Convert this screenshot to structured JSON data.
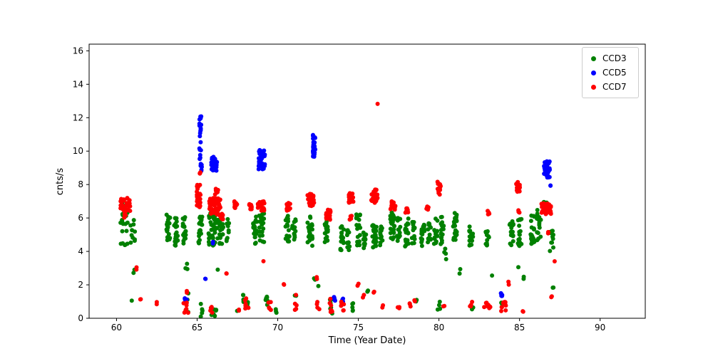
{
  "chart_data": {
    "type": "scatter",
    "title": "",
    "xlabel": "Time (Year Date)",
    "ylabel": "cnts/s",
    "xlim": [
      58.3,
      92.8
    ],
    "ylim": [
      0,
      16.4
    ],
    "xticks": [
      60,
      65,
      70,
      75,
      80,
      85,
      90
    ],
    "yticks": [
      0,
      2,
      4,
      6,
      8,
      10,
      12,
      14,
      16
    ],
    "grid": false,
    "legend_position": "upper right",
    "marker_radius": 3,
    "series": [
      {
        "name": "CCD3",
        "color": "#008000",
        "clusters": [
          [
            60.5,
            0.25,
            4.3,
            7.3,
            22
          ],
          [
            61.0,
            0.15,
            4.5,
            6.1,
            10
          ],
          [
            61.1,
            0.05,
            2.0,
            3.0,
            2
          ],
          [
            60.9,
            0.05,
            1.0,
            1.2,
            1
          ],
          [
            63.2,
            0.12,
            4.5,
            6.2,
            22
          ],
          [
            63.7,
            0.12,
            4.3,
            6.0,
            18
          ],
          [
            64.2,
            0.12,
            4.4,
            6.2,
            18
          ],
          [
            64.3,
            0.1,
            2.5,
            3.4,
            3
          ],
          [
            64.4,
            0.1,
            0.3,
            1.5,
            4
          ],
          [
            65.2,
            0.12,
            4.4,
            6.3,
            22
          ],
          [
            65.3,
            0.1,
            0.1,
            0.9,
            5
          ],
          [
            66.0,
            0.3,
            4.2,
            6.4,
            48
          ],
          [
            66.5,
            0.12,
            4.4,
            6.2,
            20
          ],
          [
            66.9,
            0.1,
            4.5,
            6.0,
            10
          ],
          [
            66.0,
            0.2,
            0.1,
            0.8,
            6
          ],
          [
            66.3,
            0.05,
            2.9,
            3.1,
            1
          ],
          [
            67.5,
            0.05,
            0.3,
            0.5,
            1
          ],
          [
            68.0,
            0.2,
            0.6,
            1.4,
            12
          ],
          [
            68.6,
            0.12,
            4.4,
            6.2,
            22
          ],
          [
            69.0,
            0.15,
            4.5,
            6.3,
            22
          ],
          [
            69.3,
            0.1,
            0.8,
            1.3,
            6
          ],
          [
            69.9,
            0.08,
            0.2,
            0.6,
            3
          ],
          [
            70.6,
            0.12,
            4.6,
            6.3,
            18
          ],
          [
            71.0,
            0.12,
            4.4,
            6.0,
            14
          ],
          [
            71.1,
            0.05,
            1.3,
            1.5,
            2
          ],
          [
            72.0,
            0.15,
            4.3,
            6.3,
            22
          ],
          [
            72.3,
            0.05,
            2.2,
            2.6,
            2
          ],
          [
            72.5,
            0.05,
            1.9,
            2.1,
            1
          ],
          [
            73.0,
            0.12,
            4.5,
            6.2,
            18
          ],
          [
            73.3,
            0.1,
            0.2,
            1.2,
            6
          ],
          [
            74.0,
            0.12,
            3.9,
            5.5,
            18
          ],
          [
            74.4,
            0.1,
            4.0,
            5.3,
            12
          ],
          [
            74.6,
            0.08,
            0.3,
            1.0,
            5
          ],
          [
            75.0,
            0.12,
            4.3,
            6.3,
            22
          ],
          [
            75.4,
            0.1,
            3.9,
            5.2,
            12
          ],
          [
            75.6,
            0.05,
            1.5,
            1.7,
            2
          ],
          [
            76.0,
            0.15,
            4.2,
            5.6,
            22
          ],
          [
            76.4,
            0.1,
            4.3,
            5.5,
            12
          ],
          [
            77.1,
            0.15,
            4.7,
            6.4,
            22
          ],
          [
            77.5,
            0.1,
            4.5,
            6.0,
            12
          ],
          [
            78.0,
            0.15,
            4.3,
            6.0,
            22
          ],
          [
            78.4,
            0.1,
            4.4,
            5.8,
            12
          ],
          [
            78.6,
            0.05,
            0.9,
            1.1,
            2
          ],
          [
            79.0,
            0.12,
            4.3,
            5.6,
            20
          ],
          [
            79.4,
            0.1,
            4.5,
            5.8,
            12
          ],
          [
            79.8,
            0.12,
            4.4,
            6.0,
            16
          ],
          [
            80.2,
            0.12,
            4.4,
            6.2,
            18
          ],
          [
            80.4,
            0.08,
            3.5,
            4.3,
            4
          ],
          [
            80.0,
            0.1,
            0.3,
            1.5,
            4
          ],
          [
            81.0,
            0.12,
            4.6,
            6.3,
            22
          ],
          [
            81.3,
            0.05,
            2.6,
            3.0,
            2
          ],
          [
            82.0,
            0.12,
            4.3,
            5.5,
            16
          ],
          [
            82.1,
            0.05,
            0.5,
            0.7,
            2
          ],
          [
            83.0,
            0.12,
            4.3,
            5.2,
            12
          ],
          [
            83.3,
            0.05,
            2.5,
            2.7,
            1
          ],
          [
            83.9,
            0.05,
            0.8,
            1.0,
            2
          ],
          [
            84.5,
            0.12,
            4.3,
            6.0,
            16
          ],
          [
            85.0,
            0.12,
            4.2,
            6.0,
            20
          ],
          [
            85.3,
            0.05,
            2.3,
            2.5,
            2
          ],
          [
            84.9,
            0.05,
            2.9,
            3.1,
            1
          ],
          [
            85.8,
            0.12,
            4.4,
            6.2,
            22
          ],
          [
            86.2,
            0.12,
            4.5,
            6.5,
            18
          ],
          [
            86.6,
            0.1,
            6.2,
            7.0,
            8
          ],
          [
            87.0,
            0.1,
            4.2,
            5.3,
            12
          ],
          [
            87.1,
            0.05,
            1.7,
            1.9,
            2
          ],
          [
            86.9,
            0.05,
            3.9,
            4.1,
            1
          ]
        ]
      },
      {
        "name": "CCD5",
        "color": "#0000ff",
        "clusters": [
          [
            64.3,
            0.08,
            1.1,
            1.3,
            5
          ],
          [
            65.2,
            0.06,
            9.4,
            12.1,
            22
          ],
          [
            65.25,
            0.05,
            8.8,
            9.3,
            6
          ],
          [
            65.5,
            0.03,
            2.3,
            2.5,
            2
          ],
          [
            66.05,
            0.18,
            8.8,
            9.7,
            40
          ],
          [
            66.0,
            0.03,
            4.4,
            4.6,
            2
          ],
          [
            69.0,
            0.2,
            8.9,
            10.1,
            32
          ],
          [
            72.25,
            0.08,
            9.6,
            11.0,
            28
          ],
          [
            73.5,
            0.06,
            1.0,
            1.3,
            6
          ],
          [
            74.0,
            0.05,
            0.9,
            1.2,
            4
          ],
          [
            83.9,
            0.06,
            1.3,
            1.5,
            6
          ],
          [
            86.7,
            0.18,
            8.4,
            9.4,
            32
          ],
          [
            86.95,
            0.03,
            7.9,
            8.2,
            2
          ]
        ]
      },
      {
        "name": "CCD7",
        "color": "#ff0000",
        "clusters": [
          [
            60.55,
            0.3,
            6.4,
            7.2,
            35
          ],
          [
            60.5,
            0.1,
            6.0,
            6.3,
            4
          ],
          [
            61.2,
            0.05,
            2.9,
            3.1,
            2
          ],
          [
            61.5,
            0.05,
            1.0,
            1.2,
            2
          ],
          [
            62.5,
            0.05,
            0.8,
            1.0,
            2
          ],
          [
            64.3,
            0.15,
            0.3,
            1.0,
            10
          ],
          [
            64.4,
            0.05,
            1.5,
            1.7,
            2
          ],
          [
            65.1,
            0.12,
            6.6,
            8.0,
            22
          ],
          [
            65.2,
            0.05,
            8.6,
            8.8,
            3
          ],
          [
            66.1,
            0.35,
            6.2,
            7.2,
            60
          ],
          [
            66.2,
            0.1,
            7.4,
            7.8,
            8
          ],
          [
            66.5,
            0.1,
            5.9,
            6.3,
            8
          ],
          [
            65.9,
            0.1,
            0.3,
            0.7,
            5
          ],
          [
            66.8,
            0.05,
            2.5,
            2.7,
            2
          ],
          [
            67.4,
            0.1,
            6.6,
            7.0,
            10
          ],
          [
            67.6,
            0.05,
            0.4,
            0.6,
            2
          ],
          [
            68.1,
            0.15,
            0.5,
            1.2,
            10
          ],
          [
            68.3,
            0.1,
            6.5,
            6.9,
            10
          ],
          [
            69.0,
            0.25,
            6.4,
            7.0,
            24
          ],
          [
            69.1,
            0.05,
            3.4,
            3.6,
            1
          ],
          [
            69.5,
            0.08,
            0.4,
            1.2,
            5
          ],
          [
            70.4,
            0.05,
            1.9,
            2.1,
            2
          ],
          [
            70.65,
            0.12,
            6.4,
            6.9,
            14
          ],
          [
            71.1,
            0.08,
            0.5,
            1.5,
            5
          ],
          [
            72.05,
            0.2,
            6.7,
            7.5,
            30
          ],
          [
            72.4,
            0.05,
            2.3,
            2.5,
            2
          ],
          [
            72.5,
            0.08,
            0.5,
            1.2,
            4
          ],
          [
            73.15,
            0.15,
            5.9,
            6.5,
            18
          ],
          [
            73.3,
            0.1,
            0.3,
            1.2,
            8
          ],
          [
            74.0,
            0.1,
            0.3,
            1.0,
            7
          ],
          [
            74.55,
            0.15,
            6.9,
            7.5,
            18
          ],
          [
            74.5,
            0.08,
            5.9,
            6.2,
            4
          ],
          [
            75.0,
            0.05,
            1.9,
            2.1,
            2
          ],
          [
            75.3,
            0.05,
            1.2,
            1.4,
            2
          ],
          [
            76.0,
            0.2,
            6.9,
            7.7,
            28
          ],
          [
            76.2,
            0.02,
            12.8,
            12.9,
            1
          ],
          [
            76.0,
            0.05,
            1.4,
            1.6,
            2
          ],
          [
            76.5,
            0.05,
            0.6,
            0.8,
            2
          ],
          [
            77.15,
            0.15,
            6.5,
            7.0,
            18
          ],
          [
            77.5,
            0.06,
            0.6,
            0.8,
            3
          ],
          [
            78.0,
            0.1,
            6.3,
            6.6,
            8
          ],
          [
            78.2,
            0.05,
            0.7,
            0.9,
            3
          ],
          [
            78.5,
            0.05,
            1.0,
            1.2,
            2
          ],
          [
            79.3,
            0.08,
            6.4,
            6.7,
            5
          ],
          [
            80.0,
            0.12,
            7.4,
            8.2,
            20
          ],
          [
            80.3,
            0.05,
            0.6,
            0.8,
            2
          ],
          [
            82.0,
            0.08,
            0.6,
            1.0,
            4
          ],
          [
            83.0,
            0.2,
            0.6,
            1.0,
            12
          ],
          [
            83.1,
            0.08,
            6.2,
            6.5,
            4
          ],
          [
            84.0,
            0.15,
            0.2,
            1.0,
            10
          ],
          [
            84.3,
            0.05,
            2.0,
            2.2,
            2
          ],
          [
            84.9,
            0.12,
            7.5,
            8.2,
            18
          ],
          [
            84.95,
            0.05,
            6.3,
            6.5,
            3
          ],
          [
            85.2,
            0.05,
            0.3,
            0.5,
            2
          ],
          [
            86.65,
            0.3,
            6.2,
            6.9,
            40
          ],
          [
            86.8,
            0.05,
            5.0,
            5.2,
            3
          ],
          [
            87.0,
            0.05,
            1.2,
            1.4,
            2
          ],
          [
            87.2,
            0.03,
            3.4,
            3.6,
            1
          ]
        ]
      }
    ]
  }
}
